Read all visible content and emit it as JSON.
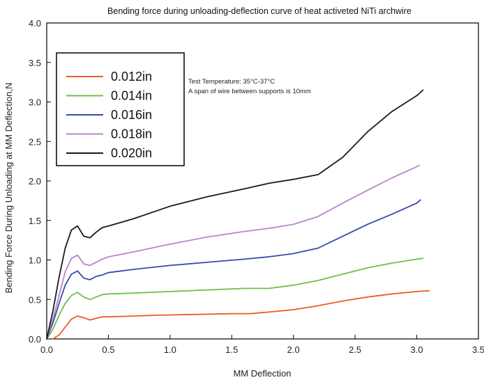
{
  "chart_data": {
    "type": "line",
    "title": "Bending force during unloading-deflection curve of heat activeted NiTi archwire",
    "xlabel": "MM Deflection",
    "ylabel": "Bending Force During Unloading at MM Deflection,N",
    "xlim": [
      0,
      3.5
    ],
    "ylim": [
      0,
      4.0
    ],
    "xticks": [
      "0.0",
      "0.5",
      "1.0",
      "1.5",
      "2.0",
      "2.5",
      "3.0",
      "3.5"
    ],
    "yticks": [
      "0.0",
      "0.5",
      "1.0",
      "1.5",
      "2.0",
      "2.5",
      "3.0",
      "3.5",
      "4.0"
    ],
    "grid": false,
    "legend_position": "top-left",
    "annotations": [
      "Test Temperature: 35°C-37°C",
      "A span of wire between supports is 10mm"
    ],
    "series": [
      {
        "name": "0.012in",
        "color": "#f05a22",
        "points": [
          [
            0.05,
            0.0
          ],
          [
            0.1,
            0.05
          ],
          [
            0.15,
            0.15
          ],
          [
            0.2,
            0.25
          ],
          [
            0.25,
            0.29
          ],
          [
            0.3,
            0.27
          ],
          [
            0.35,
            0.24
          ],
          [
            0.4,
            0.26
          ],
          [
            0.45,
            0.28
          ],
          [
            0.5,
            0.28
          ],
          [
            0.7,
            0.29
          ],
          [
            0.9,
            0.3
          ],
          [
            1.2,
            0.31
          ],
          [
            1.5,
            0.32
          ],
          [
            1.65,
            0.32
          ],
          [
            1.8,
            0.34
          ],
          [
            2.0,
            0.37
          ],
          [
            2.2,
            0.42
          ],
          [
            2.4,
            0.48
          ],
          [
            2.6,
            0.53
          ],
          [
            2.8,
            0.57
          ],
          [
            3.0,
            0.6
          ],
          [
            3.1,
            0.61
          ]
        ]
      },
      {
        "name": "0.014in",
        "color": "#6cc04a",
        "points": [
          [
            0.0,
            0.0
          ],
          [
            0.05,
            0.12
          ],
          [
            0.1,
            0.3
          ],
          [
            0.15,
            0.45
          ],
          [
            0.2,
            0.55
          ],
          [
            0.25,
            0.59
          ],
          [
            0.3,
            0.53
          ],
          [
            0.35,
            0.5
          ],
          [
            0.4,
            0.53
          ],
          [
            0.45,
            0.56
          ],
          [
            0.5,
            0.57
          ],
          [
            0.7,
            0.58
          ],
          [
            1.0,
            0.6
          ],
          [
            1.3,
            0.62
          ],
          [
            1.6,
            0.64
          ],
          [
            1.8,
            0.64
          ],
          [
            2.0,
            0.68
          ],
          [
            2.2,
            0.74
          ],
          [
            2.4,
            0.82
          ],
          [
            2.6,
            0.9
          ],
          [
            2.8,
            0.96
          ],
          [
            3.0,
            1.01
          ],
          [
            3.05,
            1.02
          ]
        ]
      },
      {
        "name": "0.016in",
        "color": "#3a48a8",
        "points": [
          [
            0.0,
            0.0
          ],
          [
            0.05,
            0.2
          ],
          [
            0.1,
            0.45
          ],
          [
            0.15,
            0.68
          ],
          [
            0.2,
            0.82
          ],
          [
            0.25,
            0.86
          ],
          [
            0.3,
            0.77
          ],
          [
            0.35,
            0.75
          ],
          [
            0.4,
            0.79
          ],
          [
            0.45,
            0.81
          ],
          [
            0.5,
            0.84
          ],
          [
            0.7,
            0.88
          ],
          [
            1.0,
            0.93
          ],
          [
            1.3,
            0.97
          ],
          [
            1.6,
            1.01
          ],
          [
            1.8,
            1.04
          ],
          [
            2.0,
            1.08
          ],
          [
            2.2,
            1.15
          ],
          [
            2.4,
            1.3
          ],
          [
            2.6,
            1.45
          ],
          [
            2.8,
            1.58
          ],
          [
            3.0,
            1.72
          ],
          [
            3.03,
            1.76
          ]
        ]
      },
      {
        "name": "0.018in",
        "color": "#b884cc",
        "points": [
          [
            0.0,
            0.0
          ],
          [
            0.05,
            0.25
          ],
          [
            0.1,
            0.55
          ],
          [
            0.15,
            0.85
          ],
          [
            0.2,
            1.02
          ],
          [
            0.25,
            1.06
          ],
          [
            0.3,
            0.95
          ],
          [
            0.35,
            0.93
          ],
          [
            0.4,
            0.97
          ],
          [
            0.45,
            1.01
          ],
          [
            0.5,
            1.04
          ],
          [
            0.7,
            1.1
          ],
          [
            1.0,
            1.2
          ],
          [
            1.3,
            1.29
          ],
          [
            1.6,
            1.36
          ],
          [
            1.8,
            1.4
          ],
          [
            2.0,
            1.45
          ],
          [
            2.2,
            1.55
          ],
          [
            2.4,
            1.72
          ],
          [
            2.6,
            1.88
          ],
          [
            2.8,
            2.04
          ],
          [
            3.0,
            2.18
          ],
          [
            3.02,
            2.2
          ]
        ]
      },
      {
        "name": "0.020in",
        "color": "#1a1a1a",
        "points": [
          [
            0.0,
            0.0
          ],
          [
            0.05,
            0.35
          ],
          [
            0.1,
            0.78
          ],
          [
            0.15,
            1.15
          ],
          [
            0.2,
            1.38
          ],
          [
            0.25,
            1.43
          ],
          [
            0.3,
            1.3
          ],
          [
            0.35,
            1.28
          ],
          [
            0.4,
            1.35
          ],
          [
            0.45,
            1.41
          ],
          [
            0.5,
            1.43
          ],
          [
            0.7,
            1.52
          ],
          [
            1.0,
            1.68
          ],
          [
            1.3,
            1.8
          ],
          [
            1.6,
            1.9
          ],
          [
            1.8,
            1.97
          ],
          [
            2.0,
            2.02
          ],
          [
            2.2,
            2.08
          ],
          [
            2.4,
            2.3
          ],
          [
            2.6,
            2.62
          ],
          [
            2.8,
            2.88
          ],
          [
            3.0,
            3.08
          ],
          [
            3.05,
            3.15
          ]
        ]
      }
    ]
  }
}
